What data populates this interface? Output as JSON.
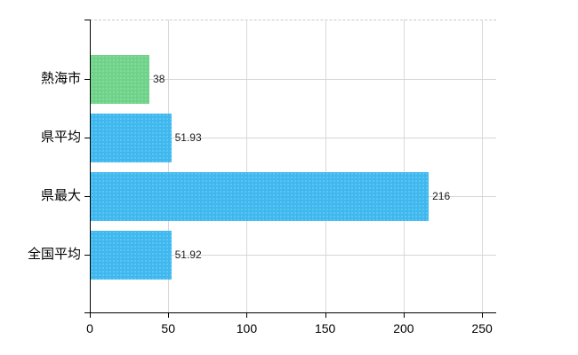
{
  "chart_data": {
    "type": "bar",
    "orientation": "horizontal",
    "title": "",
    "xlabel": "",
    "ylabel": "",
    "categories": [
      "熱海市",
      "県平均",
      "県最大",
      "全国平均"
    ],
    "values": [
      38,
      51.93,
      216,
      51.92
    ],
    "value_labels": [
      "38",
      "51.93",
      "216",
      "51.92"
    ],
    "bar_colors": [
      "#6ed289",
      "#3eb8ee",
      "#3eb8ee",
      "#3eb8ee"
    ],
    "x_ticks": [
      0,
      50,
      100,
      150,
      200,
      250
    ],
    "x_tick_labels": [
      "0",
      "50",
      "100",
      "150",
      "200",
      "250"
    ],
    "xlim": [
      0,
      259
    ],
    "grid": true,
    "legend": false
  },
  "colors": {
    "background": "#ffffff",
    "bar_highlight": "#6ed289",
    "bar_default": "#3eb8ee",
    "gridline": "#d5d7d5",
    "axis": "#000000",
    "text": "#000000"
  }
}
